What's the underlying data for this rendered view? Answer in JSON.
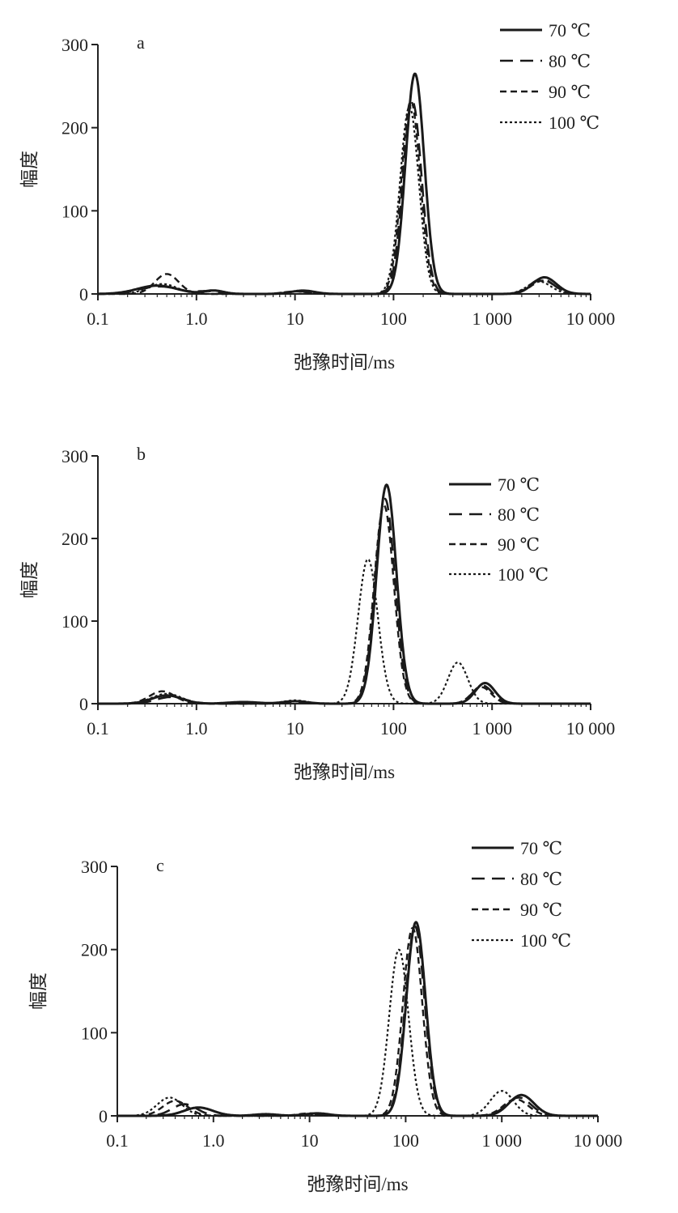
{
  "figure": {
    "y_axis_label": "幅度",
    "x_axis_label": "弛豫时间/ms"
  },
  "chart_data": [
    {
      "type": "line",
      "panel": "a",
      "xlabel": "弛豫时间/ms",
      "ylabel": "幅度",
      "xscale": "log",
      "xlim": [
        0.1,
        10000
      ],
      "ylim": [
        0,
        300
      ],
      "xticks": [
        0.1,
        1,
        10,
        100,
        1000,
        10000
      ],
      "xtick_labels": [
        "0.1",
        "1.0",
        "10",
        "100",
        "1 000",
        "10 000"
      ],
      "yticks": [
        0,
        100,
        200,
        300
      ],
      "ytick_labels": [
        "0",
        "100",
        "200",
        "300"
      ],
      "legend_position": "top-right",
      "series": [
        {
          "name": "70 ℃",
          "style": "solid",
          "peaks": [
            [
              0.4,
              10,
              0.2
            ],
            [
              1.5,
              4,
              0.1
            ],
            [
              12,
              4,
              0.12
            ],
            [
              165,
              265,
              0.095
            ],
            [
              3400,
              20,
              0.12
            ]
          ]
        },
        {
          "name": "80 ℃",
          "style": "longdash",
          "peaks": [
            [
              0.42,
              9,
              0.2
            ],
            [
              1.3,
              3,
              0.1
            ],
            [
              11,
              3,
              0.12
            ],
            [
              155,
              232,
              0.095
            ],
            [
              3200,
              18,
              0.12
            ]
          ]
        },
        {
          "name": "90 ℃",
          "style": "dash",
          "peaks": [
            [
              0.5,
              24,
              0.12
            ],
            [
              10,
              3,
              0.12
            ],
            [
              150,
              232,
              0.095
            ],
            [
              3300,
              16,
              0.12
            ]
          ]
        },
        {
          "name": "100 ℃",
          "style": "dot",
          "peaks": [
            [
              0.45,
              12,
              0.15
            ],
            [
              10,
              3,
              0.12
            ],
            [
              145,
              225,
              0.095
            ],
            [
              3000,
              15,
              0.12
            ]
          ]
        }
      ]
    },
    {
      "type": "line",
      "panel": "b",
      "xlabel": "弛豫时间/ms",
      "ylabel": "幅度",
      "xscale": "log",
      "xlim": [
        0.1,
        10000
      ],
      "ylim": [
        0,
        300
      ],
      "xticks": [
        0.1,
        1,
        10,
        100,
        1000,
        10000
      ],
      "xtick_labels": [
        "0.1",
        "1.0",
        "10",
        "100",
        "1 000",
        "10 000"
      ],
      "yticks": [
        0,
        100,
        200,
        300
      ],
      "ytick_labels": [
        "0",
        "100",
        "200",
        "300"
      ],
      "legend_position": "top-right",
      "series": [
        {
          "name": "70 ℃",
          "style": "solid",
          "peaks": [
            [
              0.5,
              10,
              0.15
            ],
            [
              3,
              2,
              0.15
            ],
            [
              10,
              3,
              0.12
            ],
            [
              85,
              265,
              0.1
            ],
            [
              850,
              25,
              0.1
            ]
          ]
        },
        {
          "name": "80 ℃",
          "style": "longdash",
          "peaks": [
            [
              0.55,
              8,
              0.15
            ],
            [
              10,
              2,
              0.12
            ],
            [
              82,
              248,
              0.1
            ],
            [
              800,
              22,
              0.1
            ]
          ]
        },
        {
          "name": "90 ℃",
          "style": "dash",
          "peaks": [
            [
              0.45,
              15,
              0.13
            ],
            [
              10,
              3,
              0.12
            ],
            [
              80,
              240,
              0.1
            ],
            [
              780,
              20,
              0.1
            ]
          ]
        },
        {
          "name": "100 ℃",
          "style": "dot",
          "peaks": [
            [
              0.5,
              12,
              0.15
            ],
            [
              10,
              4,
              0.12
            ],
            [
              55,
              175,
              0.1
            ],
            [
              450,
              50,
              0.1
            ]
          ]
        }
      ]
    },
    {
      "type": "line",
      "panel": "c",
      "xlabel": "弛豫时间/ms",
      "ylabel": "幅度",
      "xscale": "log",
      "xlim": [
        0.1,
        10000
      ],
      "ylim": [
        0,
        300
      ],
      "xticks": [
        0.1,
        1,
        10,
        100,
        1000,
        10000
      ],
      "xtick_labels": [
        "0.1",
        "1.0",
        "10",
        "100",
        "1 000",
        "10 000"
      ],
      "yticks": [
        0,
        100,
        200,
        300
      ],
      "ytick_labels": [
        "0",
        "100",
        "200",
        "300"
      ],
      "legend_position": "top-right",
      "series": [
        {
          "name": "70 ℃",
          "style": "solid",
          "peaks": [
            [
              0.7,
              10,
              0.15
            ],
            [
              3.5,
              2,
              0.12
            ],
            [
              12,
              3,
              0.12
            ],
            [
              128,
              233,
              0.1
            ],
            [
              1600,
              25,
              0.13
            ]
          ]
        },
        {
          "name": "80 ℃",
          "style": "longdash",
          "peaks": [
            [
              0.5,
              14,
              0.13
            ],
            [
              10,
              2,
              0.12
            ],
            [
              125,
              228,
              0.1
            ],
            [
              1500,
              22,
              0.13
            ]
          ]
        },
        {
          "name": "90 ℃",
          "style": "dash",
          "peaks": [
            [
              0.4,
              18,
              0.13
            ],
            [
              10,
              3,
              0.12
            ],
            [
              118,
              226,
              0.1
            ],
            [
              1400,
              20,
              0.13
            ]
          ]
        },
        {
          "name": "100 ℃",
          "style": "dot",
          "peaks": [
            [
              0.35,
              22,
              0.13
            ],
            [
              10,
              2,
              0.12
            ],
            [
              85,
              200,
              0.1
            ],
            [
              1000,
              30,
              0.12
            ]
          ]
        }
      ]
    }
  ]
}
